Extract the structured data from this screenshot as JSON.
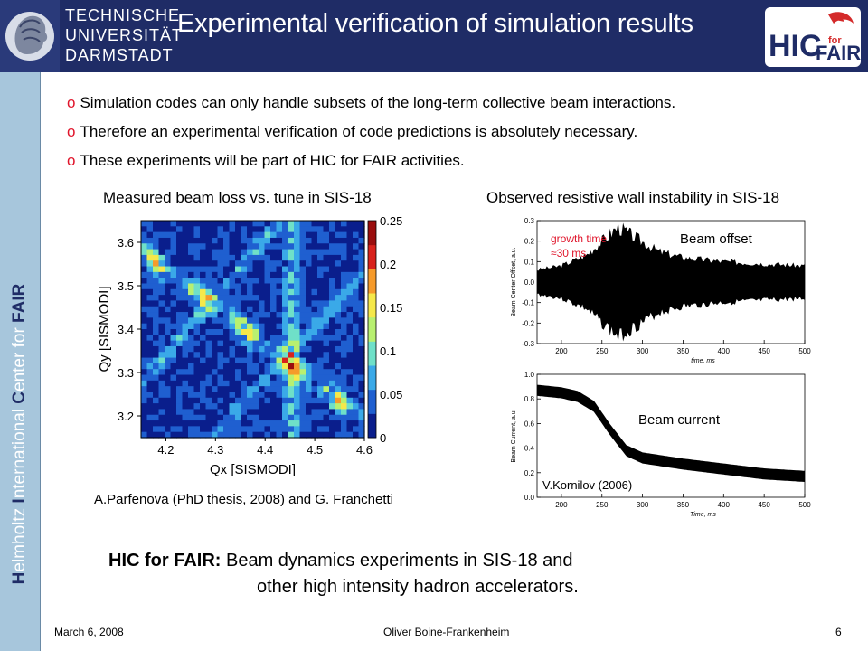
{
  "header": {
    "university": [
      "TECHNISCHE",
      "UNIVERSITÄT",
      "DARMSTADT"
    ],
    "title": "Experimental  verification of simulation results",
    "logo": {
      "letters": "HIC",
      "small": "for",
      "word": "FAIR"
    }
  },
  "sidebar": {
    "parts": [
      {
        "cap": "H",
        "rest": "elmholtz "
      },
      {
        "cap": "I",
        "rest": "nternational "
      },
      {
        "cap": "C",
        "rest": "enter for "
      }
    ],
    "fair": "FAIR"
  },
  "bullets": [
    {
      "marker": "o",
      "text": "Simulation codes can only handle subsets of the long-term collective beam interactions."
    },
    {
      "marker": "o",
      "text": "Therefore an experimental verification of code predictions is absolutely necessary."
    },
    {
      "marker": "o",
      "text": "These experiments will be part of HIC for FAIR activities."
    }
  ],
  "left_figure": {
    "caption": "Measured beam loss vs. tune in SIS-18",
    "credit": "A.Parfenova (PhD thesis, 2008) and G. Franchetti"
  },
  "right_figure": {
    "caption": "Observed resistive wall instability in SIS-18",
    "credit": "V.Kornilov (2006)",
    "label_offset": "Beam offset",
    "label_current": "Beam current",
    "growth_time": [
      "growth time",
      "≈30 ms"
    ]
  },
  "chart_data": [
    {
      "type": "heatmap",
      "xlabel": "Qx [SISMODI]",
      "ylabel": "Qy [SISMODI]",
      "xlim": [
        4.15,
        4.6
      ],
      "ylim": [
        3.15,
        3.65
      ],
      "xticks": [
        "4.2",
        "4.3",
        "4.4",
        "4.5",
        "4.6"
      ],
      "yticks": [
        "3.2",
        "3.3",
        "3.4",
        "3.5",
        "3.6"
      ],
      "colorbar_ticks": [
        "0",
        "0.05",
        "0.1",
        "0.15",
        "0.2",
        "0.25"
      ],
      "colorbar_range": [
        0,
        0.25
      ],
      "colors": [
        "#0a1e8c",
        "#1f5fd0",
        "#3aa9e8",
        "#6fe0c8",
        "#b8f070",
        "#f5e84a",
        "#f59a2a",
        "#d8221c",
        "#9a0d0d"
      ]
    },
    {
      "type": "line",
      "ylabel": "Beam Center Offset, a.u.",
      "xlabel": "time, ms",
      "xlim": [
        170,
        500
      ],
      "ylim": [
        -0.3,
        0.3
      ],
      "xticks": [
        "200",
        "250",
        "300",
        "350",
        "400",
        "450",
        "500"
      ],
      "yticks": [
        "0.3",
        "0.2",
        "0.1",
        "0.0",
        "-0.1",
        "-0.2",
        "-0.3"
      ],
      "series": [
        {
          "x": [
            170,
            200,
            230,
            250,
            270,
            290,
            320,
            350,
            400,
            450,
            500
          ],
          "envelope": [
            0.06,
            0.08,
            0.13,
            0.2,
            0.27,
            0.22,
            0.15,
            0.12,
            0.1,
            0.09,
            0.08
          ]
        }
      ]
    },
    {
      "type": "line",
      "ylabel": "Beam Current, a.u.",
      "xlabel": "Time, ms",
      "xlim": [
        170,
        500
      ],
      "ylim": [
        0,
        1.0
      ],
      "xticks": [
        "200",
        "250",
        "300",
        "350",
        "400",
        "450",
        "500"
      ],
      "yticks": [
        "1.0",
        "0.8",
        "0.6",
        "0.4",
        "0.2",
        "0.0"
      ],
      "series": [
        {
          "x": [
            170,
            200,
            220,
            240,
            260,
            280,
            300,
            350,
            400,
            450,
            500
          ],
          "y": [
            0.87,
            0.85,
            0.82,
            0.74,
            0.55,
            0.38,
            0.32,
            0.27,
            0.23,
            0.19,
            0.17
          ]
        }
      ]
    }
  ],
  "summary": {
    "bold": "HIC for FAIR:",
    "line1": " Beam dynamics experiments in SIS-18 and",
    "line2": "other high intensity hadron accelerators."
  },
  "footer": {
    "date": "March 6, 2008",
    "author": "Oliver Boine-Frankenheim",
    "page": "6"
  }
}
